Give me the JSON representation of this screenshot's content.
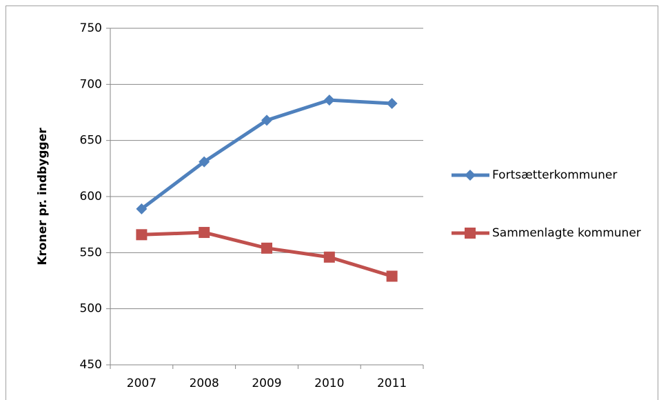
{
  "chart_data": {
    "type": "line",
    "y_label": "Kroner pr. indbygger",
    "categories": [
      "2007",
      "2008",
      "2009",
      "2010",
      "2011"
    ],
    "series": [
      {
        "name": "Fortsætterkommuner",
        "color": "#4f81bd",
        "marker": "diamond",
        "values": [
          589,
          631,
          668,
          686,
          683
        ]
      },
      {
        "name": "Sammenlagte kommuner",
        "color": "#c0504d",
        "marker": "square",
        "values": [
          566,
          568,
          554,
          546,
          529
        ]
      }
    ],
    "ylim": [
      450,
      750
    ],
    "yticks": [
      450,
      500,
      550,
      600,
      650,
      700,
      750
    ],
    "grid": true,
    "legend": "right"
  }
}
